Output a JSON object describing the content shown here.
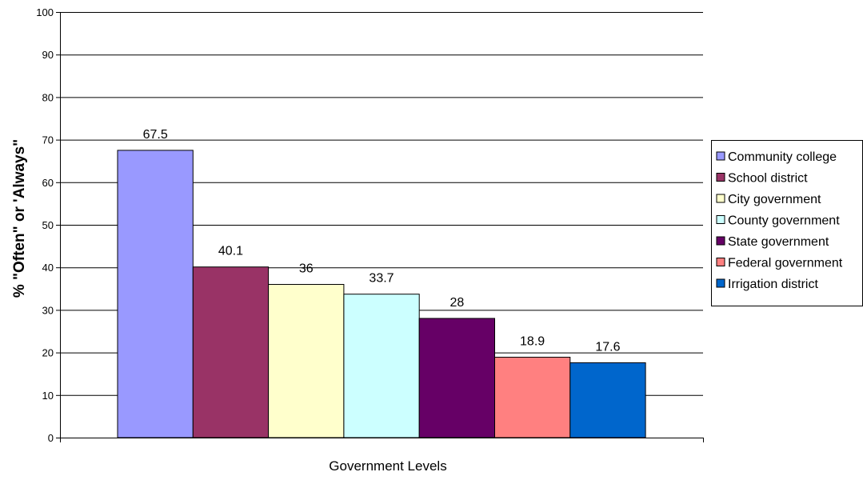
{
  "chart_data": {
    "type": "bar",
    "categories": [
      "Community college",
      "School district",
      "City government",
      "County government",
      "State government",
      "Federal government",
      "Irrigation district"
    ],
    "values": [
      67.5,
      40.1,
      36,
      33.7,
      28,
      18.9,
      17.6
    ],
    "value_labels": [
      "67.5",
      "40.1",
      "36",
      "33.7",
      "28",
      "18.9",
      "17.6"
    ],
    "colors": [
      "#9999FF",
      "#993366",
      "#FFFFCC",
      "#CCFFFF",
      "#660066",
      "#FF8080",
      "#0066CC"
    ],
    "xlabel": "Government Levels",
    "ylabel": "% \"Often\" or 'Always\"",
    "ylim": [
      0,
      100
    ],
    "yticks": [
      0,
      10,
      20,
      30,
      40,
      50,
      60,
      70,
      80,
      90,
      100
    ],
    "grid": true,
    "legend_position": "right"
  }
}
